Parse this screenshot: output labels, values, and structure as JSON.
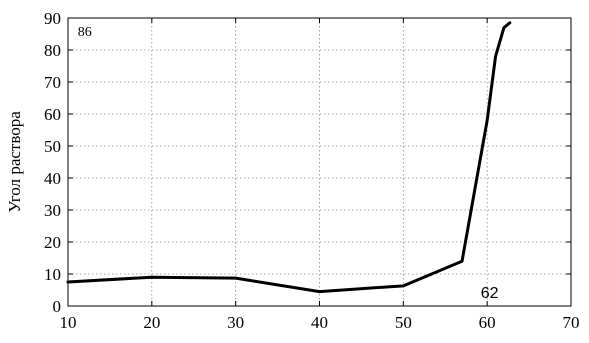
{
  "chart_data": {
    "type": "line",
    "xlabel": "",
    "ylabel": "Угол раствора",
    "xlim": [
      10,
      70
    ],
    "ylim": [
      0,
      90
    ],
    "xticks": [
      10,
      20,
      30,
      40,
      50,
      60,
      70
    ],
    "yticks": [
      0,
      10,
      20,
      30,
      40,
      50,
      60,
      70,
      80,
      90
    ],
    "grid": true,
    "series": [
      {
        "x": [
          10,
          20,
          30,
          40,
          50,
          57,
          60,
          61,
          62,
          62.7
        ],
        "y": [
          7.5,
          9,
          8.7,
          4.5,
          6.3,
          14,
          58,
          78,
          87,
          88.5
        ]
      }
    ],
    "annotations": [
      {
        "text": "86",
        "x": 12,
        "y": 86,
        "style": "small"
      },
      {
        "text": "62",
        "x": 60.3,
        "y": 4,
        "style": "large"
      }
    ]
  }
}
